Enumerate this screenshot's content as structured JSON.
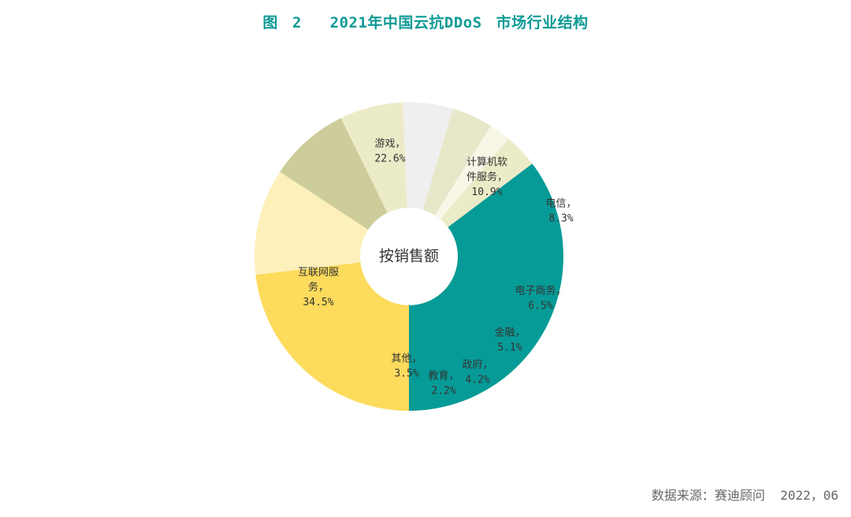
{
  "chart_data": {
    "type": "pie",
    "title": "图 2  2021年中国云抗DDoS 市场行业结构",
    "center_label": "按销售额",
    "unit": "%",
    "slices": [
      {
        "label": "游戏",
        "value": 22.6,
        "color": "#fddb5c",
        "label_lines": [
          "游戏，",
          "22.6%"
        ]
      },
      {
        "label": "计算机软件服务",
        "value": 10.9,
        "color": "#fdf0ba",
        "label_lines": [
          "计算机软",
          "件服务，",
          "10.9%"
        ]
      },
      {
        "label": "电信",
        "value": 8.3,
        "color": "#cdcd9b",
        "label_lines": [
          "电信，",
          "8.3%"
        ]
      },
      {
        "label": "电子商务",
        "value": 6.5,
        "color": "#ecebc8",
        "label_lines": [
          "电子商务，",
          "6.5%"
        ]
      },
      {
        "label": "金融",
        "value": 5.1,
        "color": "#efefef",
        "label_lines": [
          "金融，",
          "5.1%"
        ]
      },
      {
        "label": "政府",
        "value": 4.2,
        "color": "#e7e7c9",
        "label_lines": [
          "政府，",
          "4.2%"
        ]
      },
      {
        "label": "教育",
        "value": 2.2,
        "color": "#f8f6e6",
        "label_lines": [
          "教育，",
          "2.2%"
        ]
      },
      {
        "label": "其他",
        "value": 3.5,
        "color": "#ecebc8",
        "label_lines": [
          "其他，",
          "3.5%"
        ]
      },
      {
        "label": "互联网服务",
        "value": 34.5,
        "color": "#079b97",
        "label_lines": [
          "互联网服",
          "务，",
          "34.5%"
        ]
      }
    ]
  },
  "source_note": "数据来源：赛迪顾问  2022，06"
}
